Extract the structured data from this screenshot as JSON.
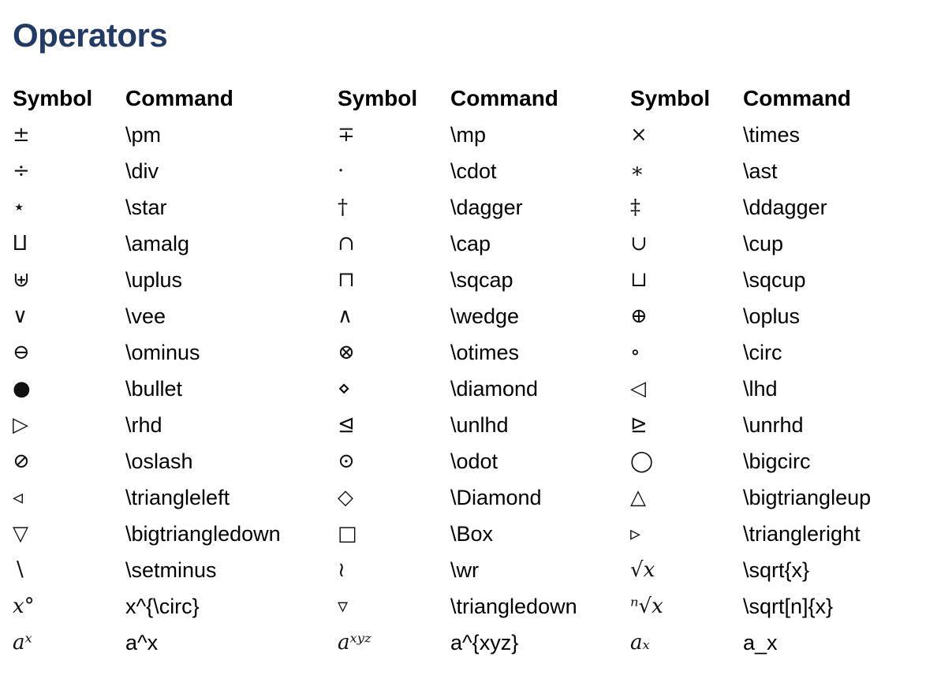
{
  "page_title": "Operators",
  "headers": {
    "symbol": "Symbol",
    "command": "Command"
  },
  "rows": [
    [
      {
        "s": "±",
        "c": "\\pm"
      },
      {
        "s": "∓",
        "c": "\\mp"
      },
      {
        "s": "×",
        "c": "\\times"
      }
    ],
    [
      {
        "s": "÷",
        "c": "\\div"
      },
      {
        "s": "·",
        "c": "\\cdot"
      },
      {
        "s": "∗",
        "c": "\\ast"
      }
    ],
    [
      {
        "s": "⋆",
        "c": "\\star"
      },
      {
        "s": "†",
        "c": "\\dagger"
      },
      {
        "s": "‡",
        "c": "\\ddagger"
      }
    ],
    [
      {
        "s": "⨿",
        "c": "\\amalg"
      },
      {
        "s": "∩",
        "c": "\\cap"
      },
      {
        "s": "∪",
        "c": "\\cup"
      }
    ],
    [
      {
        "s": "⊎",
        "c": "\\uplus"
      },
      {
        "s": "⊓",
        "c": "\\sqcap"
      },
      {
        "s": "⊔",
        "c": "\\sqcup"
      }
    ],
    [
      {
        "s": "∨",
        "c": "\\vee"
      },
      {
        "s": "∧",
        "c": "\\wedge"
      },
      {
        "s": "⊕",
        "c": "\\oplus"
      }
    ],
    [
      {
        "s": "⊖",
        "c": "\\ominus"
      },
      {
        "s": "⊗",
        "c": "\\otimes"
      },
      {
        "s": "∘",
        "c": "\\circ"
      }
    ],
    [
      {
        "s": "●",
        "c": "\\bullet"
      },
      {
        "s": "⋄",
        "c": "\\diamond"
      },
      {
        "s": "◁",
        "c": "\\lhd"
      }
    ],
    [
      {
        "s": "▷",
        "c": "\\rhd"
      },
      {
        "s": "⊴",
        "c": "\\unlhd"
      },
      {
        "s": "⊵",
        "c": "\\unrhd"
      }
    ],
    [
      {
        "s": "⊘",
        "c": "\\oslash"
      },
      {
        "s": "⊙",
        "c": "\\odot"
      },
      {
        "s": "◯",
        "c": "\\bigcirc"
      }
    ],
    [
      {
        "s": "◃",
        "c": "\\triangleleft"
      },
      {
        "s": "◇",
        "c": "\\Diamond"
      },
      {
        "s": "△",
        "c": "\\bigtriangleup"
      }
    ],
    [
      {
        "s": "▽",
        "c": "\\bigtriangledown"
      },
      {
        "s": "□",
        "c": "\\Box"
      },
      {
        "s": "▹",
        "c": "\\triangleright"
      }
    ],
    [
      {
        "s": "∖",
        "c": "\\setminus"
      },
      {
        "s": "≀",
        "c": "\\wr"
      },
      {
        "s": "√x",
        "c": "\\sqrt{x}"
      }
    ],
    [
      {
        "s": "x°",
        "c": "x^{\\circ}"
      },
      {
        "s": "▿",
        "c": "\\triangledown"
      },
      {
        "s": "ⁿ√x",
        "c": "\\sqrt[n]{x}"
      }
    ],
    [
      {
        "s": "aˣ",
        "c": "a^x"
      },
      {
        "s": "aˣʸᶻ",
        "c": "a^{xyz}"
      },
      {
        "s": "aₓ",
        "c": "a_x"
      }
    ]
  ]
}
